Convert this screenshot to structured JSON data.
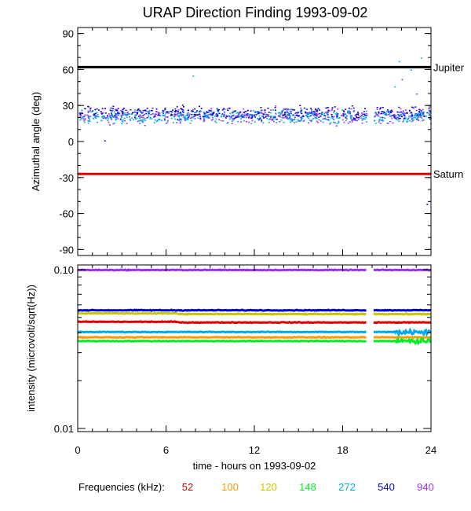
{
  "chart_data": [
    {
      "type": "scatter",
      "title": "URAP Direction Finding  1993-09-02",
      "xlabel": "",
      "ylabel": "Azimuthal angle (deg)",
      "xlim": [
        0,
        24
      ],
      "ylim": [
        -95,
        95
      ],
      "y_ticks": [
        "90",
        "60",
        "30",
        "0",
        "-30",
        "-60",
        "-90"
      ],
      "data_gap_hours": [
        19.6,
        20.1
      ],
      "reference_lines": [
        {
          "label": "Jupiter",
          "value": 62,
          "color": "#000000"
        },
        {
          "label": "Saturn",
          "value": -27,
          "color": "#dd0000"
        }
      ],
      "series": [
        {
          "frequency": "940",
          "color": "#9933ee",
          "center": 22,
          "spread": 9
        },
        {
          "frequency": "540",
          "color": "#0000dd",
          "center": 24,
          "spread": 8
        },
        {
          "frequency": "272",
          "color": "#00aaee",
          "center": 21,
          "spread": 8
        }
      ]
    },
    {
      "type": "line",
      "xlabel": "time - hours on 1993-09-02",
      "ylabel": "intensity (microvolt/sqrt(Hz))",
      "xlim": [
        0,
        24
      ],
      "ylim": [
        0.01,
        0.1
      ],
      "yscale": "log",
      "y_ticks": [
        "0.10",
        "0.01"
      ],
      "x_ticks": [
        "0",
        "6",
        "12",
        "18",
        "24"
      ],
      "data_gap_hours": [
        19.6,
        20.1
      ],
      "series": [
        {
          "frequency": "940",
          "color": "#9933ee",
          "level": 0.0995
        },
        {
          "frequency": "540",
          "color": "#0000dd",
          "level": 0.0555
        },
        {
          "frequency": "120",
          "color": "#c8c800",
          "level": 0.0525
        },
        {
          "frequency": "52",
          "color": "#dd0000",
          "level": 0.0465
        },
        {
          "frequency": "272",
          "color": "#00aaee",
          "level": 0.0405
        },
        {
          "frequency": "100",
          "color": "#ff9900",
          "level": 0.0375
        },
        {
          "frequency": "148",
          "color": "#00ee22",
          "level": 0.0355
        }
      ]
    }
  ],
  "legend": {
    "label": "Frequencies (kHz):",
    "items": [
      {
        "value": "52",
        "color": "#dd0000"
      },
      {
        "value": "100",
        "color": "#ff9900"
      },
      {
        "value": "120",
        "color": "#c8c800"
      },
      {
        "value": "148",
        "color": "#00ee22"
      },
      {
        "value": "272",
        "color": "#00aaee"
      },
      {
        "value": "540",
        "color": "#0000dd"
      },
      {
        "value": "940",
        "color": "#9933ee"
      }
    ]
  }
}
